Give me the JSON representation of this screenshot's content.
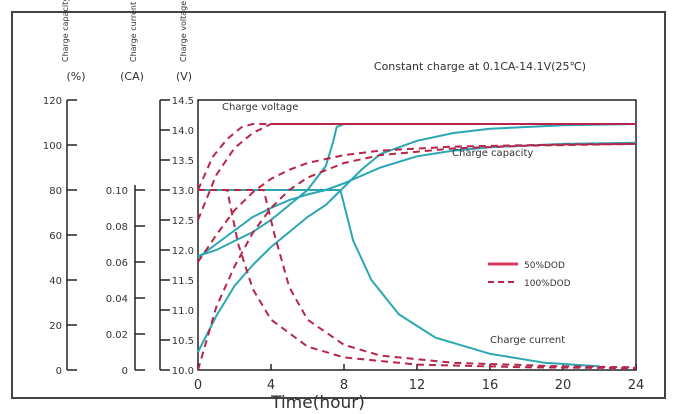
{
  "chart_data": {
    "type": "line",
    "title": "Constant charge at 0.1CA-14.1V(25℃)",
    "xlabel": "Time(hour)",
    "xlim": [
      0,
      24
    ],
    "xticks": [
      0,
      4,
      8,
      12,
      16,
      20,
      24
    ],
    "axes": {
      "capacity": {
        "title": "Charge capacity",
        "unit": "(%)",
        "range": [
          0,
          120
        ],
        "ticks": [
          0,
          20,
          40,
          60,
          80,
          100,
          120
        ]
      },
      "current": {
        "title": "Charge current",
        "unit": "(CA)",
        "range": [
          0,
          0.1
        ],
        "ticks": [
          "0",
          "0.02",
          "0.04",
          "0.06",
          "0.08",
          "0.10"
        ]
      },
      "voltage": {
        "title": "Charge voltage",
        "unit": "(V)",
        "range": [
          10.0,
          14.5
        ],
        "ticks": [
          "10.0",
          "10.5",
          "11.0",
          "11.5",
          "12.0",
          "12.5",
          "13.0",
          "13.5",
          "14.0",
          "14.5"
        ]
      }
    },
    "grid": false,
    "legend": {
      "position": "right",
      "entries": [
        {
          "label": "50%DOD",
          "style": "solid",
          "color": "#d93a5c"
        },
        {
          "label": "100%DOD",
          "style": "dashed",
          "color": "#b8254a"
        }
      ]
    },
    "annotations": [
      "Charge voltage",
      "Charge capacity",
      "Charge current"
    ],
    "colors": {
      "curve_solid": "#2aa7b3",
      "curve_dashed": "#b8254a",
      "axis": "#222222"
    },
    "series": [
      {
        "group": "50%DOD",
        "style": "solid",
        "axis": "voltage",
        "points": [
          [
            0,
            11.9
          ],
          [
            1,
            12.0
          ],
          [
            2,
            12.15
          ],
          [
            3,
            12.3
          ],
          [
            4,
            12.5
          ],
          [
            5,
            12.75
          ],
          [
            6,
            13.0
          ],
          [
            7,
            13.4
          ],
          [
            7.4,
            13.8
          ],
          [
            7.6,
            14.05
          ],
          [
            8,
            14.1
          ],
          [
            24,
            14.1
          ]
        ]
      },
      {
        "group": "50%DOD",
        "style": "solid",
        "axis": "capacity",
        "points": [
          [
            0,
            50
          ],
          [
            1,
            56
          ],
          [
            2,
            62
          ],
          [
            3,
            68
          ],
          [
            4,
            72
          ],
          [
            5,
            75.5
          ],
          [
            6,
            78
          ],
          [
            7,
            80
          ],
          [
            8,
            83
          ],
          [
            10,
            90
          ],
          [
            12,
            95
          ],
          [
            14,
            97.5
          ],
          [
            16,
            99
          ],
          [
            20,
            100.5
          ],
          [
            24,
            101
          ]
        ]
      },
      {
        "group": "50%DOD",
        "style": "solid",
        "axis": "current",
        "points": [
          [
            0,
            0.1
          ],
          [
            7.8,
            0.1
          ],
          [
            8.5,
            0.072
          ],
          [
            9.5,
            0.05
          ],
          [
            11,
            0.031
          ],
          [
            13,
            0.018
          ],
          [
            16,
            0.009
          ],
          [
            19,
            0.004
          ],
          [
            22,
            0.002
          ]
        ]
      },
      {
        "group": "100%DOD",
        "style": "solid",
        "axis": "voltage",
        "points": [
          [
            0,
            10.3
          ],
          [
            1,
            10.9
          ],
          [
            2,
            11.4
          ],
          [
            3,
            11.75
          ],
          [
            4,
            12.05
          ],
          [
            5,
            12.3
          ],
          [
            6,
            12.55
          ],
          [
            7,
            12.75
          ],
          [
            8,
            13.05
          ],
          [
            9,
            13.35
          ],
          [
            10,
            13.6
          ],
          [
            12,
            13.82
          ],
          [
            14,
            13.95
          ],
          [
            16,
            14.02
          ],
          [
            20,
            14.08
          ],
          [
            24,
            14.1
          ]
        ]
      },
      {
        "group": "100%DOD",
        "style": "dashed",
        "axis": "voltage",
        "points": [
          [
            0,
            12.5
          ],
          [
            1,
            13.25
          ],
          [
            2,
            13.7
          ],
          [
            3,
            13.95
          ],
          [
            4,
            14.1
          ],
          [
            24,
            14.1
          ]
        ]
      },
      {
        "group": "100%DOD",
        "style": "dashed",
        "axis": "capacity",
        "points": [
          [
            0,
            0
          ],
          [
            1,
            28
          ],
          [
            2,
            46
          ],
          [
            3,
            61
          ],
          [
            4,
            72
          ],
          [
            5,
            80
          ],
          [
            6,
            85.5
          ],
          [
            8,
            92
          ],
          [
            10,
            95.5
          ],
          [
            14,
            98.5
          ],
          [
            18,
            99.7
          ],
          [
            24,
            100.5
          ]
        ]
      },
      {
        "group": "100%DOD",
        "style": "dashed",
        "axis": "current",
        "points": [
          [
            0,
            0.1
          ],
          [
            3.6,
            0.1
          ],
          [
            4.2,
            0.075
          ],
          [
            5,
            0.046
          ],
          [
            6,
            0.028
          ],
          [
            8,
            0.014
          ],
          [
            10,
            0.008
          ],
          [
            14,
            0.004
          ],
          [
            20,
            0.002
          ],
          [
            24,
            0.0015
          ]
        ]
      },
      {
        "group": "50%DOD",
        "style": "dashed",
        "axis": "capacity",
        "points": [
          [
            0,
            48
          ],
          [
            1,
            60
          ],
          [
            2,
            71
          ],
          [
            3,
            79
          ],
          [
            4,
            85
          ],
          [
            5,
            89
          ],
          [
            6,
            92
          ],
          [
            8,
            95.5
          ],
          [
            10,
            97.5
          ],
          [
            14,
            99.3
          ],
          [
            20,
            100.2
          ],
          [
            24,
            100.5
          ]
        ]
      },
      {
        "group": "50%DOD",
        "style": "dashed",
        "axis": "current",
        "points": [
          [
            0,
            0.1
          ],
          [
            1.6,
            0.1
          ],
          [
            2.2,
            0.07
          ],
          [
            3,
            0.045
          ],
          [
            4,
            0.028
          ],
          [
            6,
            0.013
          ],
          [
            8,
            0.007
          ],
          [
            12,
            0.003
          ],
          [
            18,
            0.0015
          ],
          [
            24,
            0.001
          ]
        ]
      },
      {
        "group": "50%DOD",
        "style": "dashed",
        "axis": "voltage",
        "points": [
          [
            0,
            13.0
          ],
          [
            0.8,
            13.55
          ],
          [
            1.6,
            13.85
          ],
          [
            2.4,
            14.05
          ],
          [
            3,
            14.1
          ],
          [
            24,
            14.1
          ]
        ]
      }
    ]
  }
}
